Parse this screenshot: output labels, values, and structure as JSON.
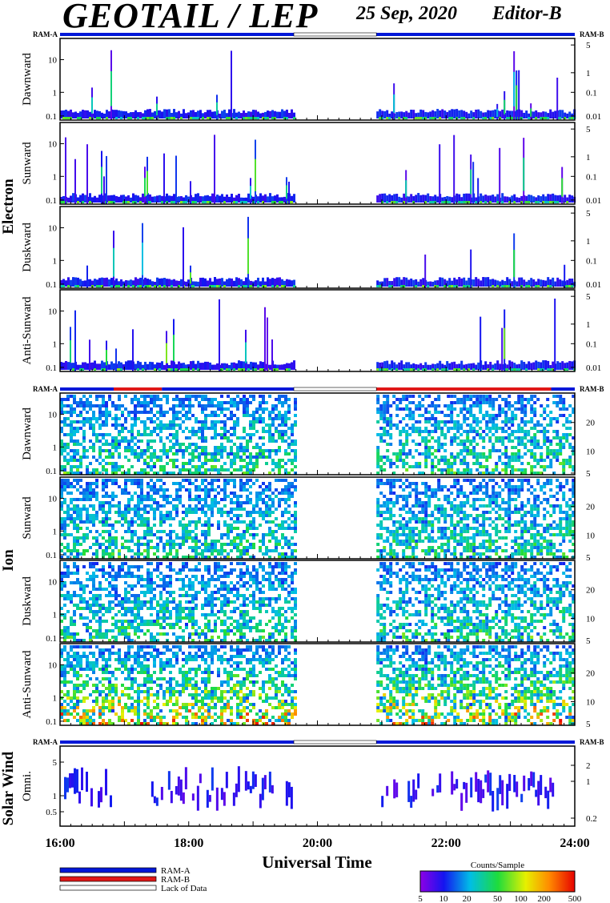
{
  "header": {
    "title": "GEOTAIL / LEP",
    "date": "25 Sep, 2020",
    "editor": "Editor-B"
  },
  "ram_labels": {
    "left": "RAM-A",
    "right": "RAM-B"
  },
  "groups": [
    {
      "label": "Electron",
      "panels": [
        "Dawnward",
        "Sunward",
        "Duskward",
        "Anti-Sunward"
      ],
      "left_ticks": [
        "10",
        "1",
        "0.1"
      ],
      "right_ticks": [
        "5",
        "1",
        "0.1",
        "0.01"
      ]
    },
    {
      "label": "Ion",
      "panels": [
        "Dawnward",
        "Sunward",
        "Duskward",
        "Anti-Sunward"
      ],
      "left_ticks": [
        "10",
        "1",
        "0.1"
      ],
      "right_ticks": [
        "20",
        "10",
        "5"
      ]
    },
    {
      "label": "Solar Wind",
      "panels": [
        "Omni."
      ],
      "left_ticks": [
        "5",
        "1",
        "0.5"
      ],
      "right_ticks": [
        "2",
        "1",
        "0.2"
      ]
    }
  ],
  "chart_data": {
    "type": "heatmap",
    "x_axis": {
      "label": "Universal Time",
      "ticks": [
        "16:00",
        "18:00",
        "20:00",
        "22:00",
        "24:00"
      ],
      "range": [
        "16:00",
        "24:00"
      ]
    },
    "left_axis": {
      "scale": "log",
      "electron_ion_range_keV": [
        0.08,
        35
      ],
      "solar_wind_range_keV": [
        0.2,
        8
      ]
    },
    "data_gap": {
      "start": "19:38",
      "end": "20:55",
      "status": "Lack of Data"
    },
    "ram_mode_bars": {
      "electron": [
        {
          "start": "16:00",
          "end": "19:38",
          "mode": "RAM-A"
        },
        {
          "start": "20:55",
          "end": "24:00",
          "mode": "RAM-A"
        }
      ],
      "ion": [
        {
          "start": "16:00",
          "end": "16:50",
          "mode": "RAM-A"
        },
        {
          "start": "16:50",
          "end": "17:35",
          "mode": "RAM-B"
        },
        {
          "start": "17:35",
          "end": "19:38",
          "mode": "RAM-A"
        },
        {
          "start": "20:55",
          "end": "23:38",
          "mode": "RAM-B"
        },
        {
          "start": "23:38",
          "end": "24:00",
          "mode": "RAM-A"
        }
      ],
      "solar_wind": [
        {
          "start": "16:00",
          "end": "19:38",
          "mode": "RAM-A"
        },
        {
          "start": "20:55",
          "end": "24:00",
          "mode": "RAM-A"
        }
      ]
    },
    "colorbar": {
      "title": "Counts/Sample",
      "scale": "log",
      "ticks": [
        "5",
        "10",
        "20",
        "50",
        "100",
        "200",
        "500"
      ],
      "range": [
        5,
        500
      ]
    },
    "legend": [
      {
        "label": "RAM-A",
        "color": "#0018d8"
      },
      {
        "label": "RAM-B",
        "color": "#e01818"
      },
      {
        "label": "Lack of Data",
        "color": "#ffffff"
      }
    ]
  }
}
